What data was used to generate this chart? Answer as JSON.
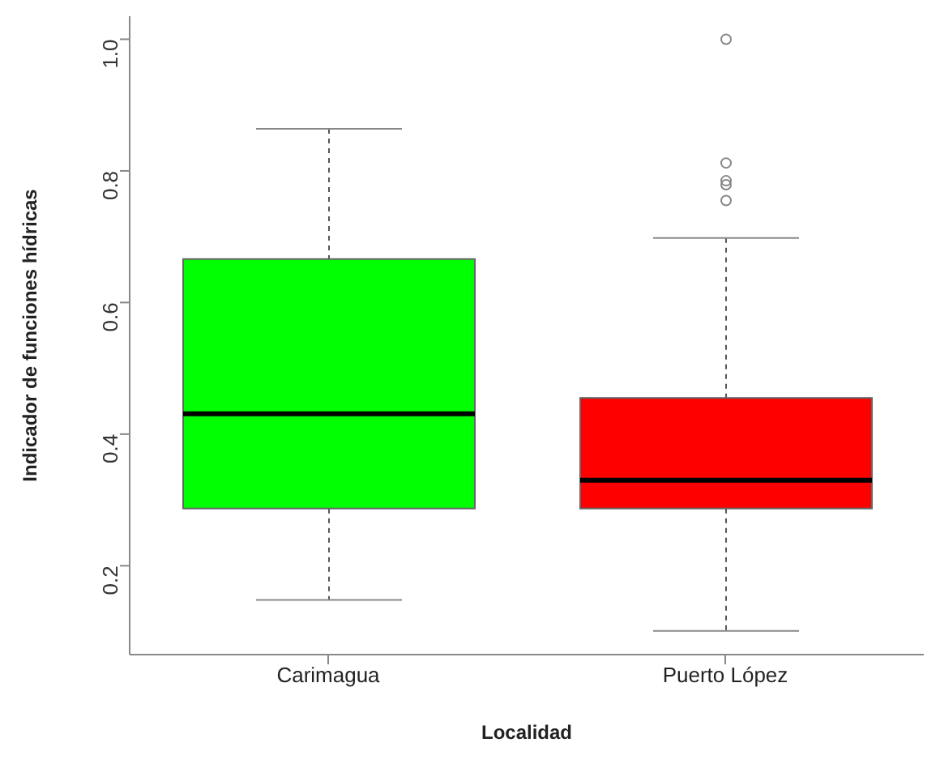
{
  "chart_data": {
    "type": "box",
    "xlabel": "Localidad",
    "ylabel": "Indicador de funciones hídricas",
    "categories": [
      "Carimagua",
      "Puerto López"
    ],
    "colors": [
      "#00ff00",
      "#ff0000"
    ],
    "boxes": [
      {
        "low": 0.148,
        "q1": 0.287,
        "median": 0.431,
        "q3": 0.666,
        "high": 0.864
      },
      {
        "low": 0.101,
        "q1": 0.287,
        "median": 0.33,
        "q3": 0.455,
        "high": 0.698,
        "outliers": [
          1.0,
          0.812,
          0.785,
          0.779,
          0.755
        ]
      }
    ],
    "ylim": [
      0.065,
      1.035
    ],
    "yticks": [
      0.2,
      0.4,
      0.6,
      0.8,
      {
        "value": 1,
        "label": "1.0"
      }
    ]
  }
}
